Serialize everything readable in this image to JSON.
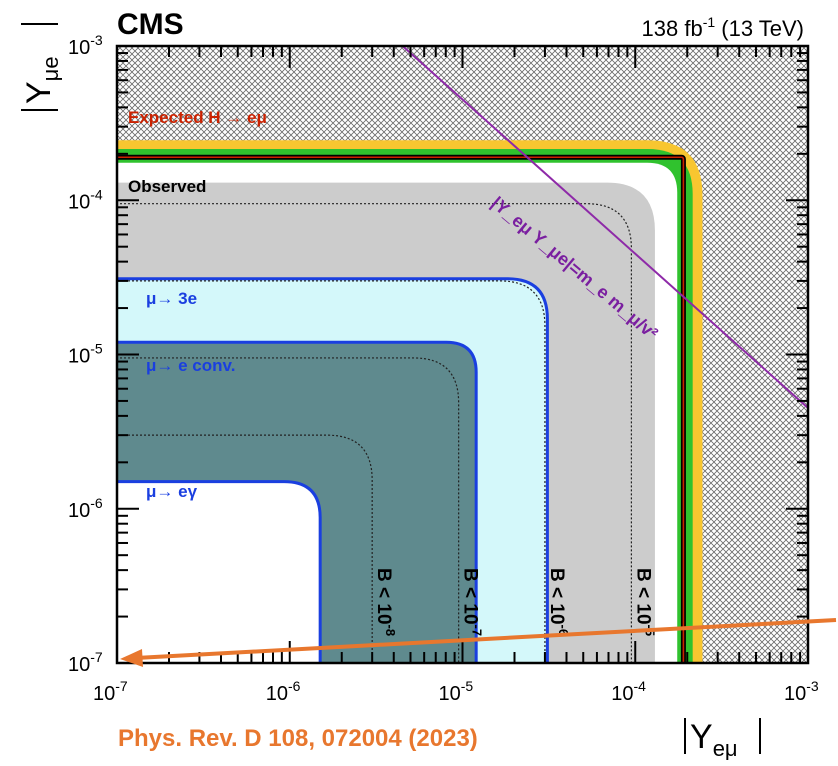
{
  "header": {
    "experiment": "CMS",
    "lumi": "138 fb",
    "lumi_exp": "-1",
    "energy": " (13 TeV)"
  },
  "reference": "Phys. Rev. D 108, 072004 (2023)",
  "chart_data": {
    "type": "contour",
    "title": "",
    "xlabel": {
      "base": "Y",
      "sub": "eμ"
    },
    "ylabel": {
      "base": "Y",
      "sub": "μe"
    },
    "x_scale": "log",
    "y_scale": "log",
    "xlim": [
      1e-07,
      0.001
    ],
    "ylim": [
      1e-07,
      0.001
    ],
    "x_ticks": [
      {
        "base": "10",
        "exp": "-7"
      },
      {
        "base": "10",
        "exp": "-6"
      },
      {
        "base": "10",
        "exp": "-5"
      },
      {
        "base": "10",
        "exp": "-4"
      },
      {
        "base": "10",
        "exp": "-3"
      }
    ],
    "y_ticks": [
      {
        "base": "10",
        "exp": "-7"
      },
      {
        "base": "10",
        "exp": "-6"
      },
      {
        "base": "10",
        "exp": "-5"
      },
      {
        "base": "10",
        "exp": "-4"
      },
      {
        "base": "10",
        "exp": "-3"
      }
    ],
    "regions": [
      {
        "name": "Observed",
        "boundary": 0.00013,
        "color": "#cccccc"
      },
      {
        "name": "μ→ 3e",
        "boundary": 3.1e-05,
        "color": "#d4f8fa",
        "edge": "#1a3fe0"
      },
      {
        "name": "μ→ e conv.",
        "boundary": 1.2e-05,
        "color": "#5f8a8e",
        "edge": "#1a3fe0"
      },
      {
        "name": "μ→ eγ",
        "boundary": 1.5e-06,
        "color": "#ffffff",
        "edge": "#1a3fe0"
      }
    ],
    "expected_limit": {
      "label": "Expected H → eμ",
      "median": 0.00019,
      "band_1sigma": [
        0.000175,
        0.000215
      ],
      "band_2sigma": [
        0.00016,
        0.000245
      ],
      "color_1sigma": "#30c22e",
      "color_2sigma": "#f8c630",
      "line_color": "#cc2200"
    },
    "observed_limit": {
      "value": 0.00019,
      "color": "#000000"
    },
    "branching_ratio_contours": [
      {
        "label": "B < 10",
        "exp": "-8",
        "value": 3e-06
      },
      {
        "label": "B < 10",
        "exp": "-7",
        "value": 9.5e-06
      },
      {
        "label": "B < 10",
        "exp": "-6",
        "value": 3e-05
      },
      {
        "label": "B < 10",
        "exp": "-5",
        "value": 9.5e-05
      }
    ],
    "naturalness_line": {
      "label": "|Y_eμ Y_μe|=m_e m_μ/v²",
      "product": 4.5e-09,
      "color": "#8e2aa8"
    },
    "excluded_hatch": "indirect-constraints"
  }
}
